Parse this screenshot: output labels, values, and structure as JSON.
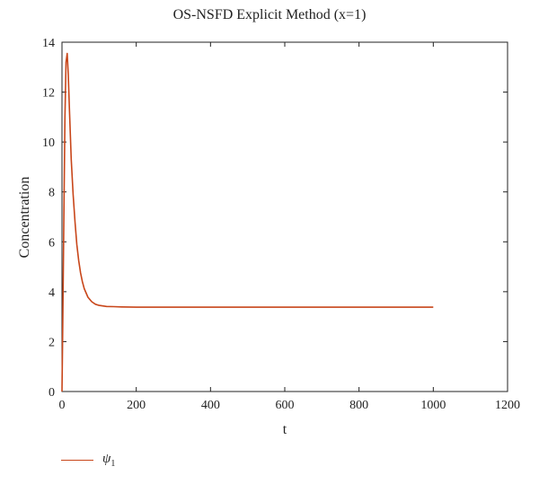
{
  "chart_data": {
    "type": "line",
    "title": "OS-NSFD Explicit Method (x=1)",
    "xlabel": "t",
    "ylabel": "Concentration",
    "xlim": [
      0,
      1200
    ],
    "ylim": [
      0,
      14
    ],
    "xticks": [
      0,
      200,
      400,
      600,
      800,
      1000,
      1200
    ],
    "yticks": [
      0,
      2,
      4,
      6,
      8,
      10,
      12,
      14
    ],
    "grid": false,
    "legend_position": "bottom-left",
    "series": [
      {
        "name": "ψ1",
        "color": "#c8461a",
        "x": [
          0,
          2,
          5,
          8,
          11,
          14,
          17,
          20,
          25,
          30,
          35,
          40,
          45,
          50,
          55,
          60,
          70,
          80,
          90,
          100,
          120,
          140,
          160,
          200,
          300,
          500,
          800,
          1000
        ],
        "y": [
          0.0,
          2.5,
          7.0,
          11.0,
          13.2,
          13.55,
          12.7,
          11.3,
          9.3,
          7.9,
          6.8,
          5.9,
          5.25,
          4.75,
          4.4,
          4.12,
          3.78,
          3.6,
          3.5,
          3.45,
          3.41,
          3.4,
          3.39,
          3.38,
          3.38,
          3.38,
          3.38,
          3.38
        ]
      }
    ]
  },
  "legend": {
    "series_symbol": "ψ",
    "series_subscript": "1"
  }
}
